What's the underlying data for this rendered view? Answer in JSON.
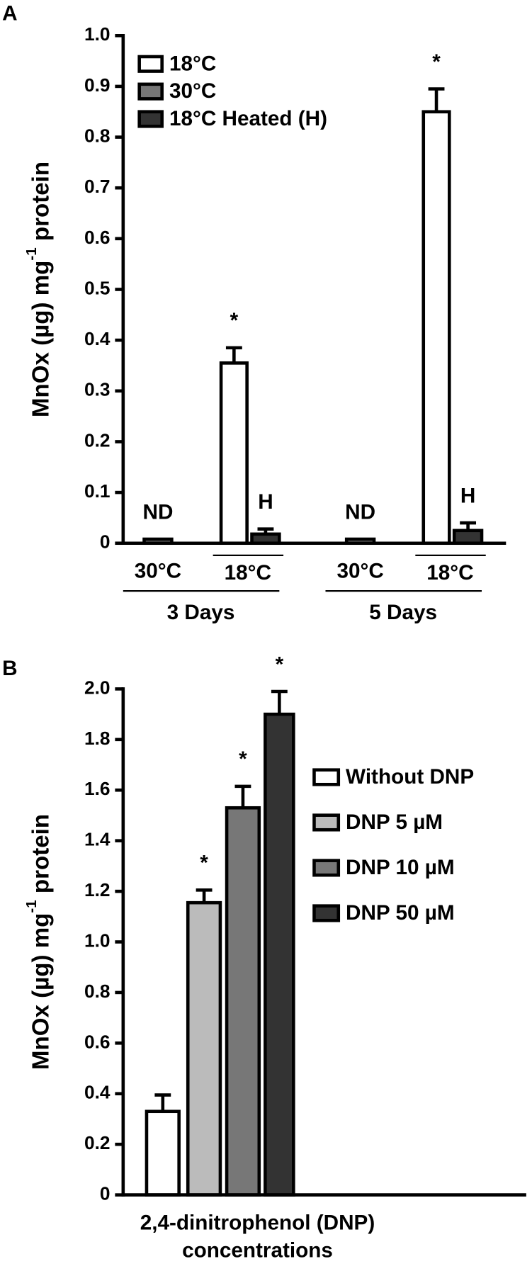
{
  "chart_data": [
    {
      "type": "bar",
      "panel_label": "A",
      "ylabel": "MnOx (µg) mg",
      "ylabel_sup": "-1",
      "ylabel_end": " protein",
      "categories": [
        "3 Days",
        "5 Days"
      ],
      "sublabels": [
        [
          "30°C",
          "18°C"
        ],
        [
          "30°C",
          "18°C"
        ]
      ],
      "series": [
        {
          "name": "18°C",
          "color": "#ffffff",
          "values": [
            0.355,
            0.85
          ],
          "errors": [
            0.03,
            0.045
          ],
          "annotations": [
            "*",
            "*"
          ]
        },
        {
          "name": "30°C",
          "color": "#777777",
          "values": [
            0.008,
            0.008
          ],
          "errors": [
            0,
            0
          ],
          "annotations": [
            "ND",
            "ND"
          ]
        },
        {
          "name": "18°C Heated (H)",
          "color": "#333333",
          "values": [
            0.018,
            0.025
          ],
          "errors": [
            0.01,
            0.015
          ],
          "annotations": [
            "H",
            "H"
          ]
        }
      ],
      "ylim": [
        0,
        1
      ],
      "yticks": [
        0,
        0.1,
        0.2,
        0.3,
        0.4,
        0.5,
        0.6,
        0.7,
        0.8,
        0.9,
        {
          "value": 1,
          "label": "1.0"
        }
      ],
      "legend": "upper left"
    },
    {
      "type": "bar",
      "panel_label": "B",
      "ylabel": "MnOx (µg) mg",
      "ylabel_sup": "-1",
      "ylabel_end": " protein",
      "xlabel": [
        "2,4-dinitrophenol (DNP)",
        "concentrations"
      ],
      "series": [
        {
          "name": "Without DNP",
          "color": "#ffffff",
          "values": [
            0.33
          ],
          "errors": [
            0.065
          ]
        },
        {
          "name": "DNP 5 µM",
          "color": "#bbbbbb",
          "values": [
            1.155
          ],
          "errors": [
            0.05
          ],
          "annotations": [
            "*"
          ]
        },
        {
          "name": "DNP 10 µM",
          "color": "#777777",
          "values": [
            1.53
          ],
          "errors": [
            0.085
          ],
          "annotations": [
            "*"
          ]
        },
        {
          "name": "DNP 50 µM",
          "color": "#333333",
          "values": [
            1.9
          ],
          "errors": [
            0.09
          ],
          "annotations": [
            "*"
          ]
        }
      ],
      "ylim": [
        0,
        2
      ],
      "yticks": [
        0,
        0.2,
        0.4,
        0.6,
        0.8,
        {
          "value": 1,
          "label": "1.0"
        },
        1.2,
        1.4,
        1.6,
        1.8,
        {
          "value": 2,
          "label": "2.0"
        }
      ],
      "legend": "right"
    }
  ]
}
